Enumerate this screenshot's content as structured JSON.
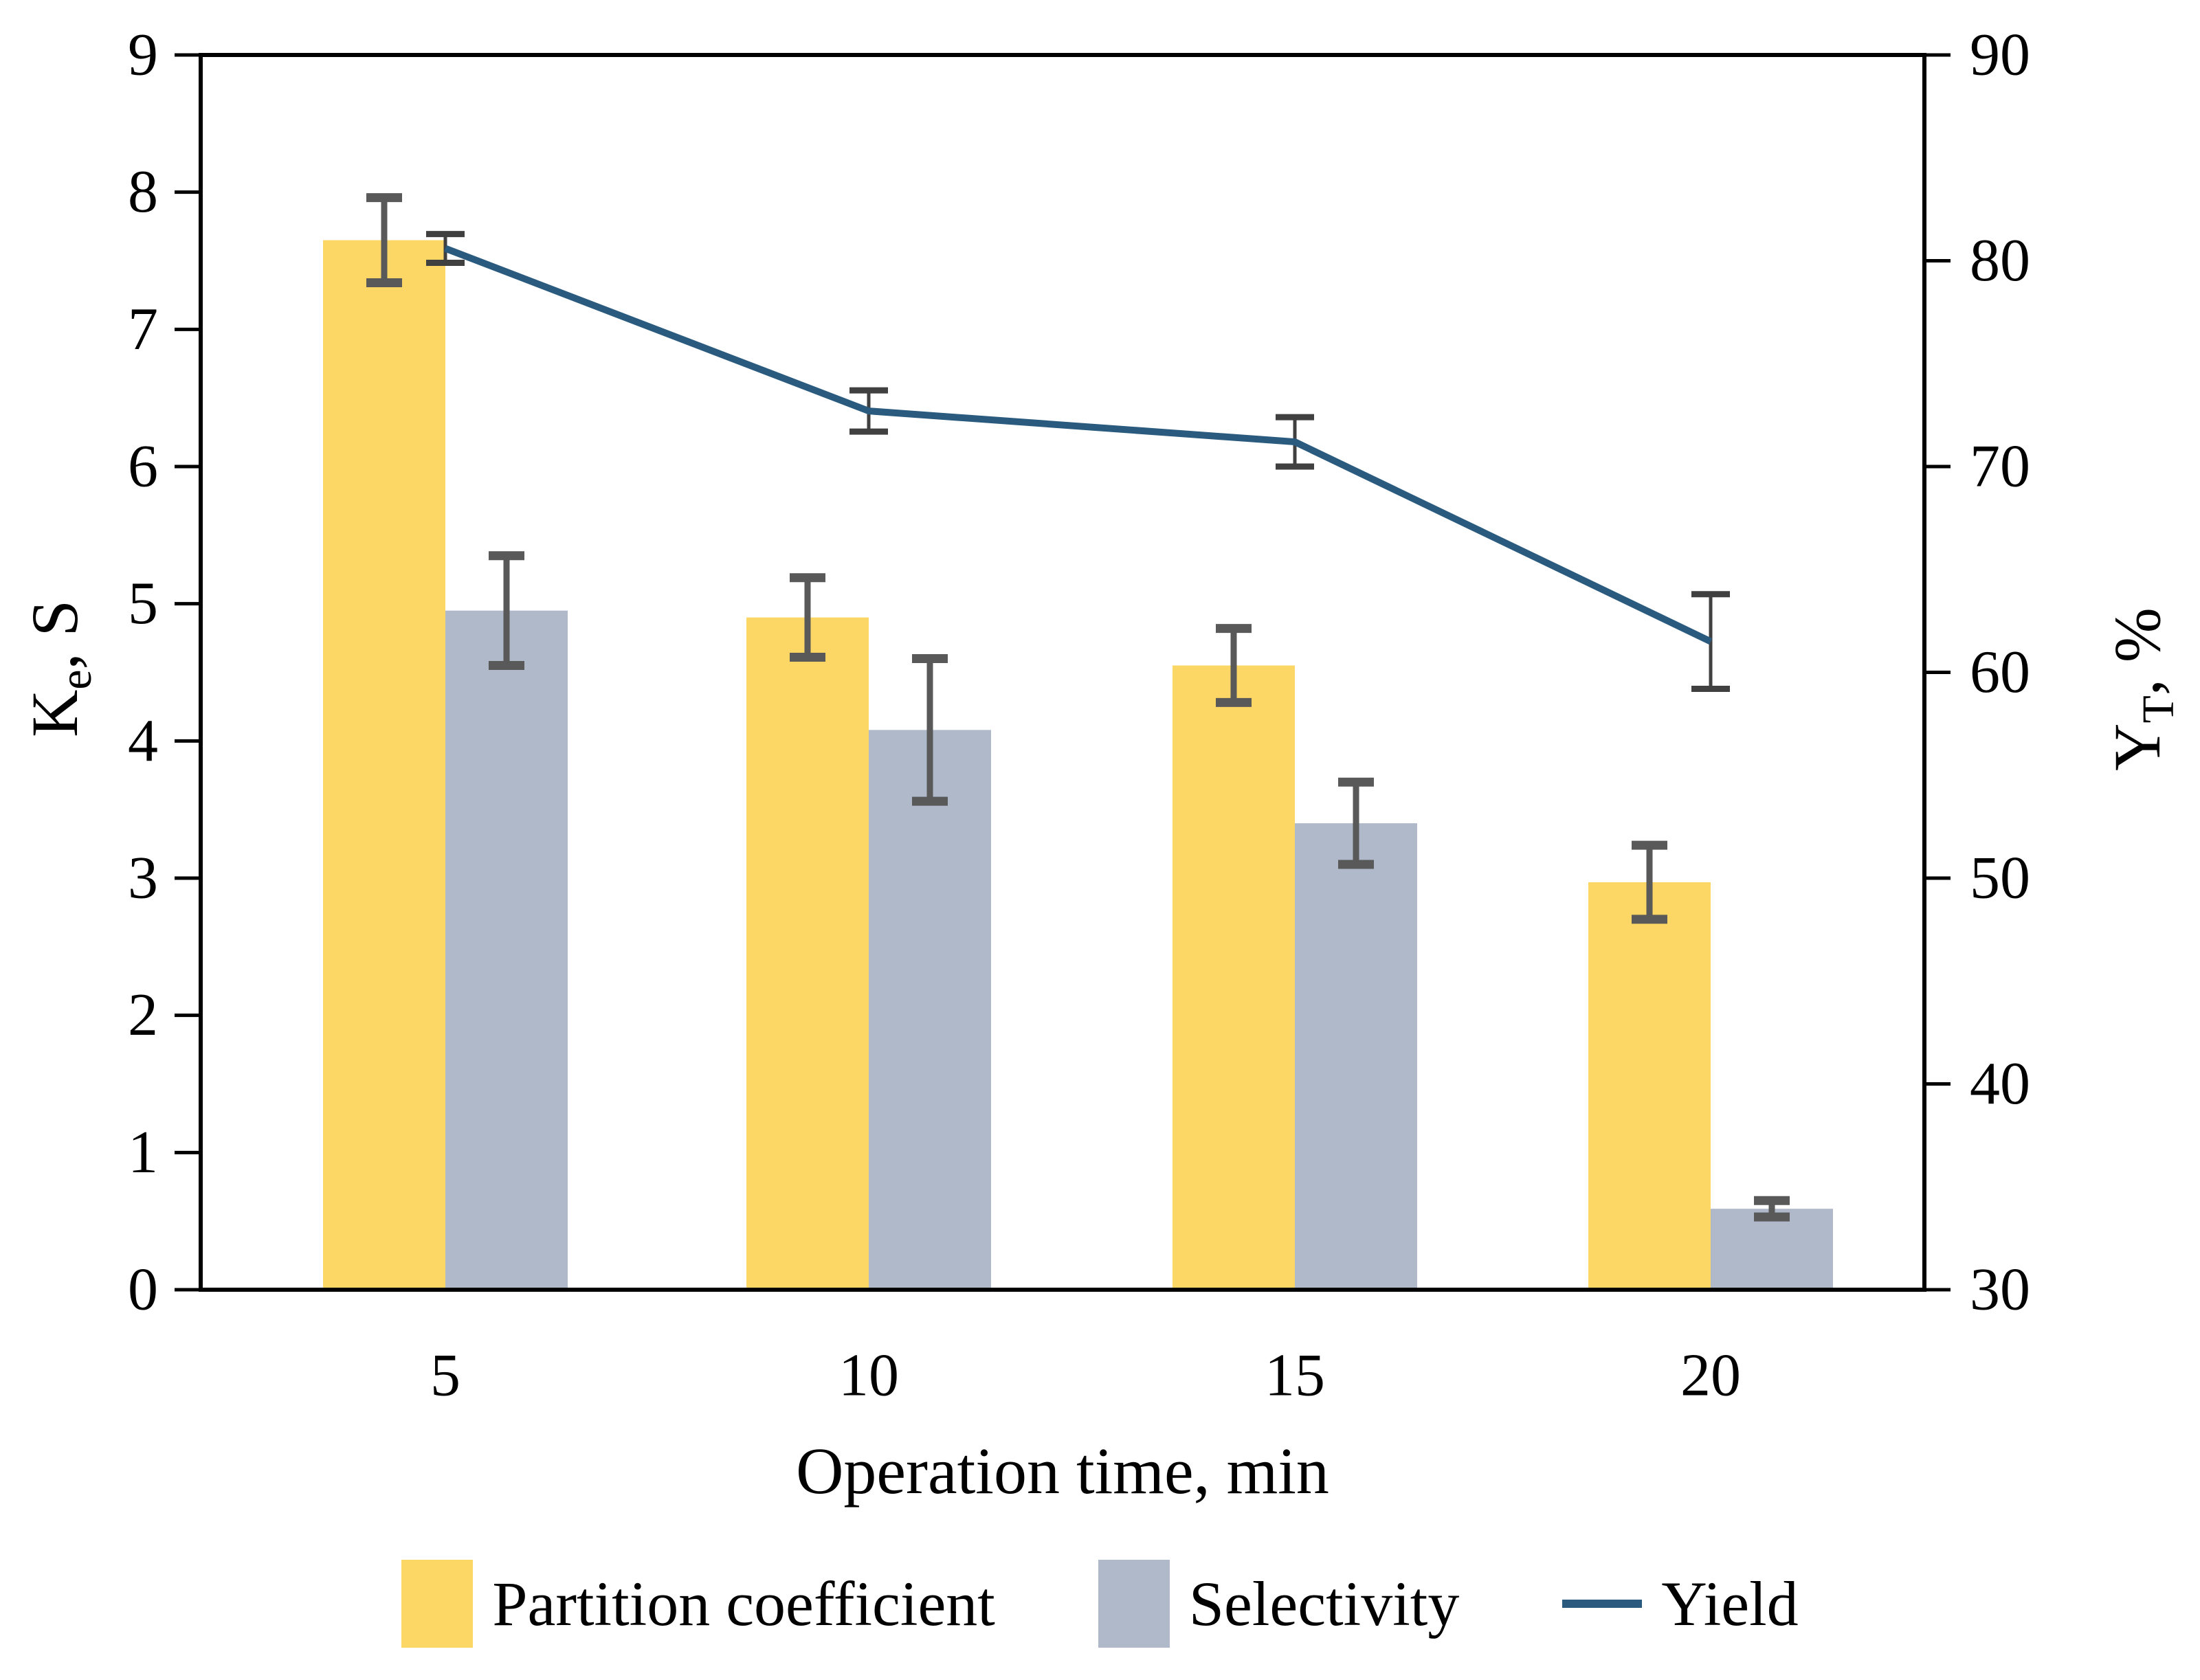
{
  "chart_data": {
    "type": "combo-bar-line",
    "title": "",
    "categories": [
      "5",
      "10",
      "15",
      "20"
    ],
    "xlabel": "Operation time, min",
    "left_axis": {
      "label_main": "K",
      "label_sub": "e",
      "label_rest": ", S",
      "min": 0,
      "max": 9,
      "ticks": [
        0,
        1,
        2,
        3,
        4,
        5,
        6,
        7,
        8,
        9
      ]
    },
    "right_axis": {
      "label_main": "Y",
      "label_sub": "T",
      "label_rest": ", %",
      "min": 30,
      "max": 90,
      "ticks": [
        30,
        40,
        50,
        60,
        70,
        80,
        90
      ]
    },
    "series": [
      {
        "name": "Partition coefficient",
        "type": "bar",
        "axis": "left",
        "color": "#FCD765",
        "values": [
          7.65,
          4.9,
          4.55,
          2.97
        ],
        "errors": [
          0.31,
          0.29,
          0.27,
          0.27
        ]
      },
      {
        "name": "Selectivity",
        "type": "bar",
        "axis": "left",
        "color": "#AFB9C9",
        "values": [
          4.95,
          4.08,
          3.4,
          0.59
        ],
        "errors": [
          0.4,
          0.52,
          0.3,
          0.06
        ]
      },
      {
        "name": "Yield",
        "type": "line",
        "axis": "right",
        "color": "#2A5B7F",
        "values": [
          80.6,
          72.7,
          71.2,
          61.5
        ],
        "errors": [
          0.7,
          1.0,
          1.2,
          2.3
        ]
      }
    ],
    "bar_error_color": "#595959",
    "line_error_color": "#404040",
    "axis_color": "#000000",
    "grid": false,
    "legend_position": "bottom"
  }
}
